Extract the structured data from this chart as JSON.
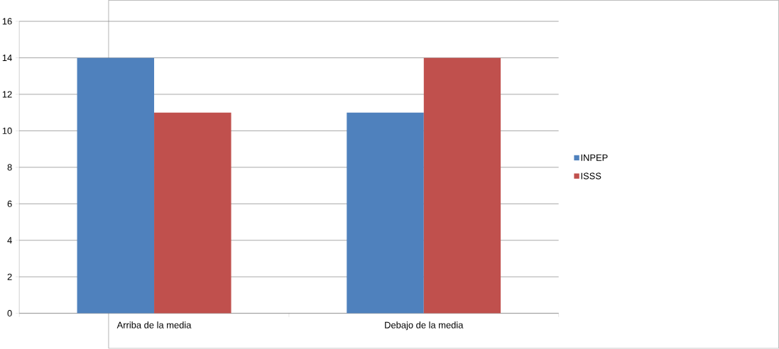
{
  "chart_data": {
    "type": "bar",
    "categories": [
      "Arriba de la media",
      "Debajo de la media"
    ],
    "series": [
      {
        "name": "INPEP",
        "color": "#4f81bd",
        "values": [
          14,
          11
        ]
      },
      {
        "name": "ISSS",
        "color": "#c0504d",
        "values": [
          11,
          14
        ]
      }
    ],
    "ylim": [
      0,
      16
    ],
    "yticks": [
      0,
      2,
      4,
      6,
      8,
      10,
      12,
      14,
      16
    ],
    "grid": "y",
    "legend": "right"
  }
}
